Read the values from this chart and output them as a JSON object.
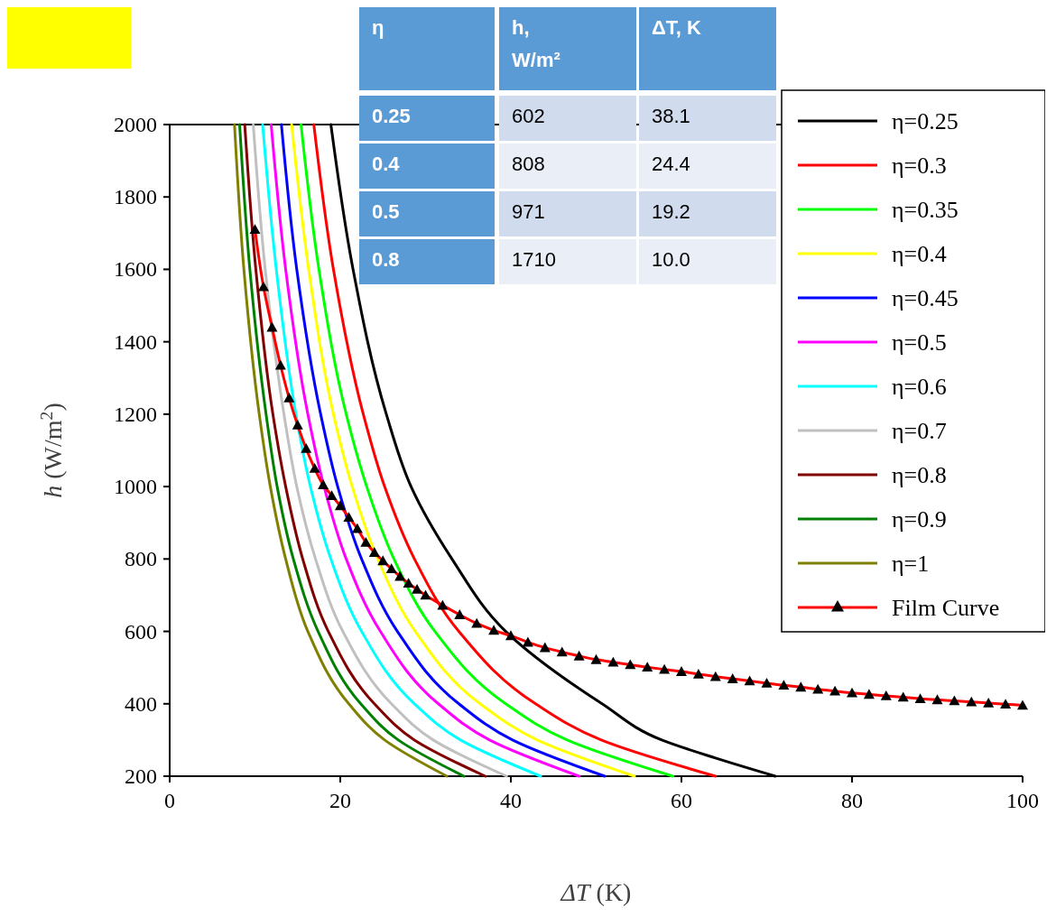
{
  "chart_data": {
    "type": "line",
    "xlabel": "ΔT (K)",
    "ylabel": "h (W/m$^{2}$)",
    "xlim": [
      0,
      100
    ],
    "ylim": [
      200,
      2000
    ],
    "xticks": [
      0,
      20,
      40,
      60,
      80,
      100
    ],
    "yticks": [
      200,
      400,
      600,
      800,
      1000,
      1200,
      1400,
      1600,
      1800,
      2000
    ],
    "grid": false,
    "legend": "right",
    "marker": "none",
    "line_style": "solid",
    "annotations": [
      "η",
      "h, W/m²",
      "ΔT, K",
      "0.25",
      "602",
      "38.1",
      "0.4",
      "808",
      "24.4",
      "0.5",
      "971",
      "19.2",
      "0.8",
      "1710",
      "10.0"
    ],
    "series": [
      {
        "name": "η=0.25",
        "color": "#000000",
        "x": [
          18.9,
          21.5,
          25.4,
          28.3,
          33.1,
          39.4,
          50.7,
          57.7,
          64,
          71
        ],
        "values": [
          2000,
          1600,
          1200,
          1000,
          800,
          600,
          400,
          300,
          250,
          200
        ]
      },
      {
        "name": "η=0.3",
        "color": "#ff0000",
        "x": [
          16.9,
          19.2,
          22.7,
          25.2,
          28.7,
          33.9,
          42.9,
          50.6,
          64
        ],
        "values": [
          2000,
          1600,
          1200,
          1000,
          800,
          600,
          400,
          300,
          200
        ]
      },
      {
        "name": "η=0.35",
        "color": "#00ff00",
        "x": [
          15.4,
          17.5,
          20.7,
          23.1,
          26.3,
          31.1,
          39.4,
          46.6,
          59
        ],
        "values": [
          2000,
          1600,
          1200,
          1000,
          800,
          600,
          400,
          300,
          200
        ]
      },
      {
        "name": "η=0.4",
        "color": "#ffff00",
        "x": [
          14.3,
          16.3,
          19.2,
          21.4,
          24.4,
          28.8,
          36.4,
          43.1,
          54.5
        ],
        "values": [
          2000,
          1600,
          1200,
          1000,
          800,
          600,
          400,
          300,
          200
        ]
      },
      {
        "name": "η=0.45",
        "color": "#0000ff",
        "x": [
          13.1,
          14.9,
          17.7,
          19.7,
          22.5,
          26.7,
          33.9,
          40.2,
          51
        ],
        "values": [
          2000,
          1600,
          1200,
          1000,
          800,
          600,
          400,
          300,
          200
        ]
      },
      {
        "name": "η=0.5",
        "color": "#ff00ff",
        "x": [
          11.9,
          13.6,
          16.2,
          18.1,
          20.7,
          24.7,
          31.5,
          37.5,
          48
        ],
        "values": [
          2000,
          1600,
          1200,
          1000,
          800,
          600,
          400,
          300,
          200
        ]
      },
      {
        "name": "η=0.6",
        "color": "#00ffff",
        "x": [
          10.9,
          12.5,
          14.8,
          16.5,
          18.9,
          22.5,
          28.7,
          34.1,
          43.5
        ],
        "values": [
          2000,
          1600,
          1200,
          1000,
          800,
          600,
          400,
          300,
          200
        ]
      },
      {
        "name": "η=0.7",
        "color": "#c0c0c0",
        "x": [
          9.8,
          11.2,
          13.4,
          14.9,
          17.1,
          20.3,
          26,
          30.9,
          39.5
        ],
        "values": [
          2000,
          1600,
          1200,
          1000,
          800,
          600,
          400,
          300,
          200
        ]
      },
      {
        "name": "η=0.8",
        "color": "#800000",
        "x": [
          8.8,
          10.1,
          12.1,
          13.6,
          15.6,
          18.6,
          24,
          28.7,
          37
        ],
        "values": [
          2000,
          1600,
          1200,
          1000,
          800,
          600,
          400,
          300,
          200
        ]
      },
      {
        "name": "η=0.9",
        "color": "#008000",
        "x": [
          8.2,
          9.4,
          11.3,
          12.6,
          14.5,
          17.4,
          22.4,
          26.8,
          34.5
        ],
        "values": [
          2000,
          1600,
          1200,
          1000,
          800,
          600,
          400,
          300,
          200
        ]
      },
      {
        "name": "η=1",
        "color": "#808000",
        "x": [
          7.6,
          8.7,
          10.5,
          11.8,
          13.6,
          16.2,
          21,
          25.2,
          32.5
        ],
        "values": [
          2000,
          1600,
          1200,
          1000,
          800,
          600,
          400,
          300,
          200
        ]
      },
      {
        "name": "Film Curve",
        "color": "#ff0000",
        "marker": "triangle",
        "x": [
          10,
          11,
          12,
          13,
          14,
          15,
          16,
          17,
          18,
          19,
          20,
          21,
          22,
          23,
          24,
          25,
          26,
          27,
          28,
          29,
          30,
          32,
          34,
          36,
          38,
          40,
          42,
          44,
          46,
          48,
          50,
          52,
          54,
          56,
          58,
          60,
          62,
          64,
          66,
          68,
          70,
          72,
          74,
          76,
          78,
          80,
          82,
          84,
          86,
          88,
          90,
          92,
          94,
          96,
          98,
          100
        ],
        "values": [
          1710,
          1552,
          1440,
          1335,
          1245,
          1170,
          1105,
          1050,
          1005,
          975,
          947,
          915,
          884,
          846,
          818,
          795,
          773,
          752,
          733,
          716,
          700,
          672,
          646,
          622,
          603,
          588,
          570,
          555,
          543,
          532,
          522,
          515,
          508,
          501,
          495,
          489,
          482,
          475,
          469,
          463,
          457,
          451,
          446,
          440,
          435,
          430,
          426,
          422,
          418,
          414,
          411,
          408,
          405,
          402,
          399,
          396
        ]
      }
    ]
  }
}
